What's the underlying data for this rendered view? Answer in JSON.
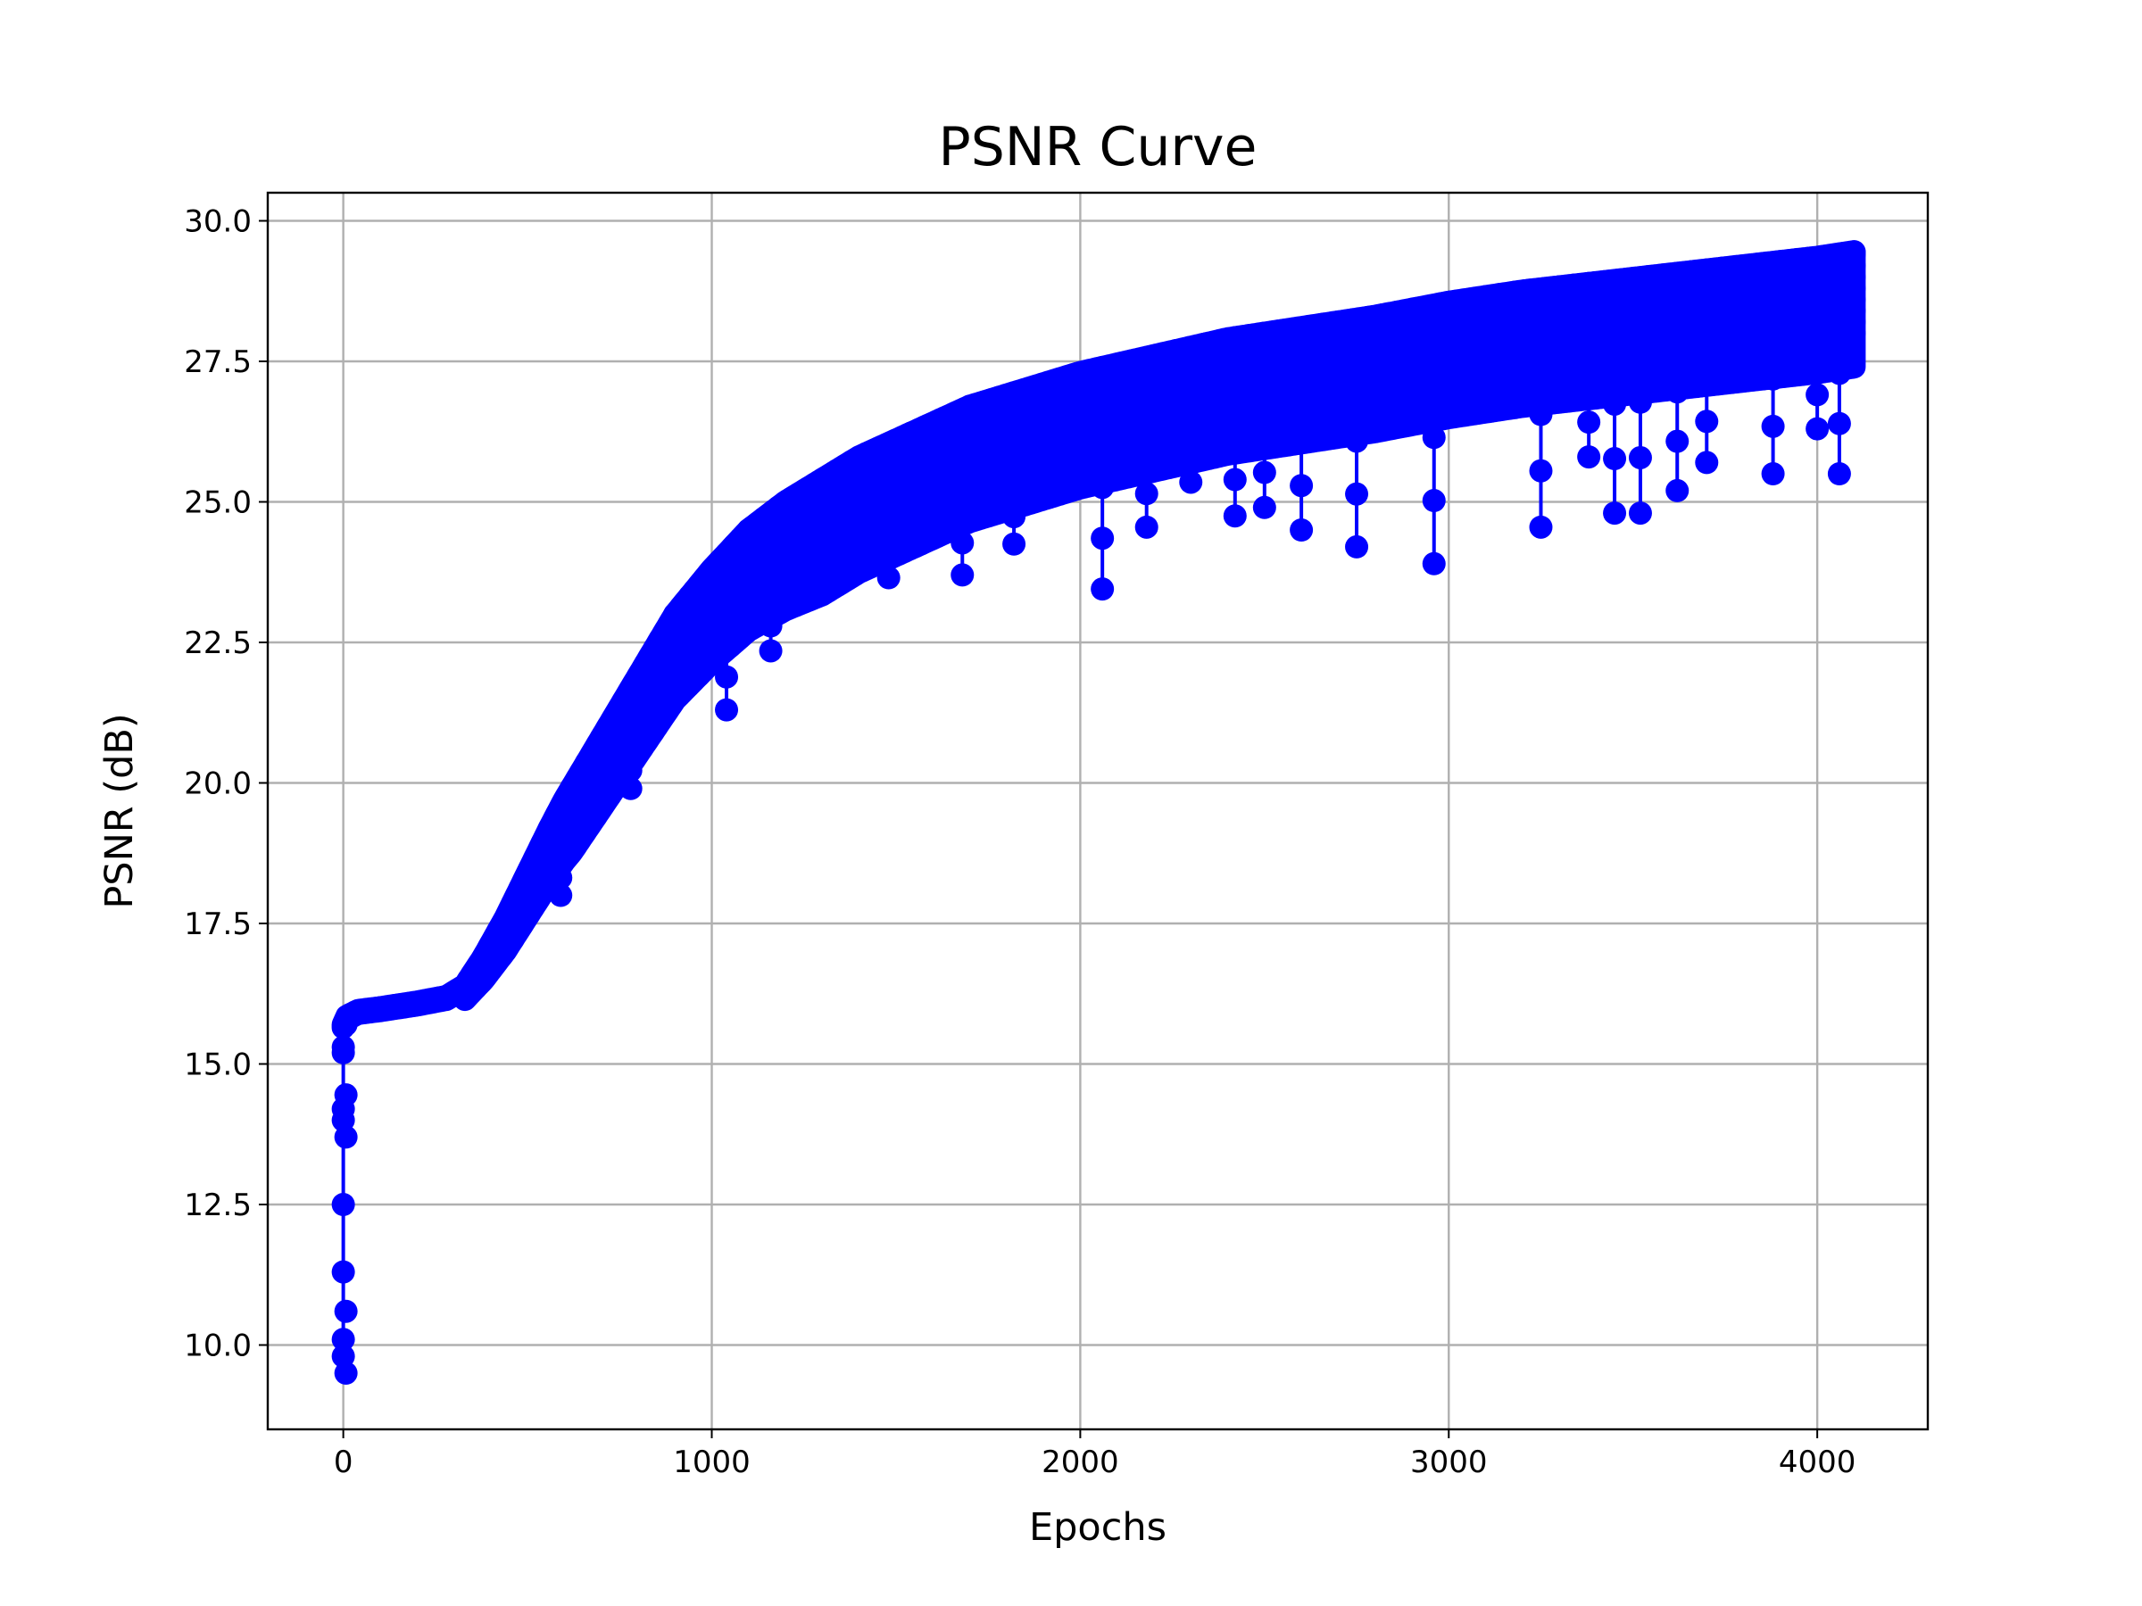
{
  "chart_data": {
    "type": "line",
    "title": "PSNR Curve",
    "xlabel": "Epochs",
    "ylabel": "PSNR (dB)",
    "xlim": [
      -205,
      4300
    ],
    "ylim": [
      8.5,
      30.5
    ],
    "xticks": [
      0,
      1000,
      2000,
      3000,
      4000
    ],
    "xtick_labels": [
      "0",
      "1000",
      "2000",
      "3000",
      "4000"
    ],
    "yticks": [
      10.0,
      12.5,
      15.0,
      17.5,
      20.0,
      22.5,
      25.0,
      27.5,
      30.0
    ],
    "ytick_labels": [
      "10.0",
      "12.5",
      "15.0",
      "17.5",
      "20.0",
      "22.5",
      "25.0",
      "27.5",
      "30.0"
    ],
    "grid": true,
    "legend": "none",
    "series": [
      {
        "color": "#0000ff",
        "marker": "circle",
        "upper_envelope": {
          "x": [
            0,
            10,
            40,
            100,
            200,
            280,
            330,
            380,
            440,
            500,
            560,
            600,
            700,
            800,
            900,
            1000,
            1100,
            1200,
            1300,
            1400,
            1500,
            1600,
            1700,
            1800,
            1900,
            2000,
            2200,
            2400,
            2600,
            2800,
            3000,
            3200,
            3400,
            3600,
            3800,
            4000,
            4100
          ],
          "y": [
            15.7,
            15.85,
            15.95,
            16.0,
            16.1,
            16.2,
            16.4,
            16.9,
            17.6,
            18.4,
            19.2,
            19.7,
            20.8,
            21.9,
            23.0,
            23.8,
            24.5,
            25.0,
            25.4,
            25.8,
            26.1,
            26.4,
            26.7,
            26.9,
            27.1,
            27.3,
            27.6,
            27.9,
            28.1,
            28.3,
            28.55,
            28.75,
            28.9,
            29.05,
            29.2,
            29.35,
            29.45
          ]
        },
        "initial_drop": {
          "x": [
            0,
            0,
            0,
            0,
            0,
            0,
            0,
            0,
            0,
            0,
            0,
            0,
            0
          ],
          "y": [
            9.5,
            9.8,
            10.1,
            10.6,
            11.3,
            12.5,
            13.7,
            14.0,
            14.2,
            14.45,
            15.2,
            15.3,
            15.7
          ]
        },
        "dips": {
          "x": [
            590,
            660,
            780,
            1040,
            1160,
            1480,
            1680,
            1820,
            2060,
            2180,
            2300,
            2420,
            2500,
            2600,
            2750,
            2960,
            3250,
            3380,
            3450,
            3520,
            3620,
            3700,
            3880,
            4000,
            4060
          ],
          "y": [
            18.0,
            19.7,
            19.9,
            21.3,
            22.35,
            23.65,
            23.7,
            24.25,
            23.45,
            24.55,
            25.35,
            24.75,
            24.9,
            24.5,
            24.2,
            23.9,
            24.55,
            25.8,
            24.8,
            24.8,
            25.2,
            25.7,
            25.5,
            26.3,
            25.5
          ]
        }
      }
    ]
  }
}
